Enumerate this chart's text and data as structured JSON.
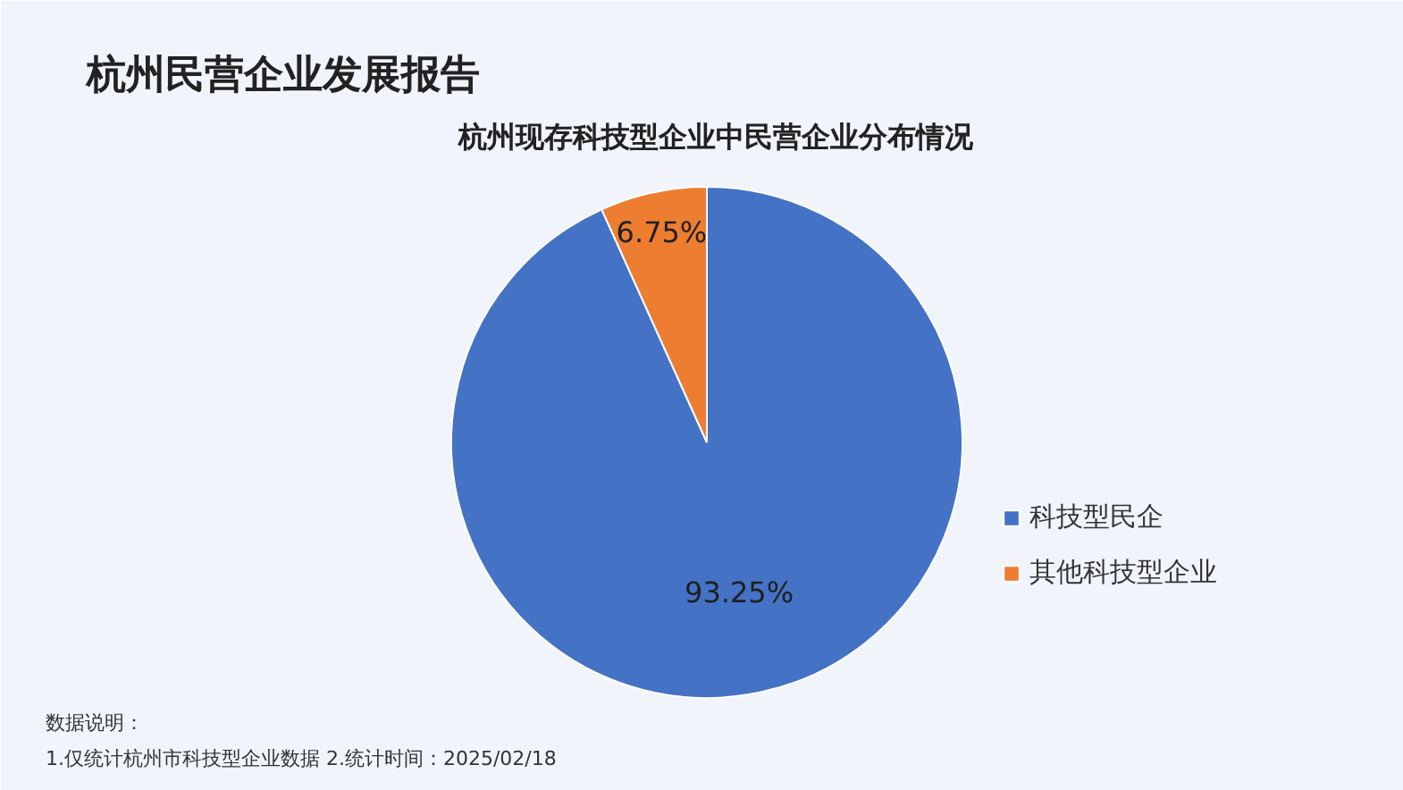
{
  "chart_data": {
    "type": "pie",
    "title": "杭州民营企业发展报告",
    "subtitle": "杭州现存科技型企业中民营企业分布情况",
    "categories": [
      "科技型民企",
      "其他科技型企业"
    ],
    "values": [
      93.25,
      6.75
    ],
    "colors": [
      "#4472c4",
      "#ed7d31"
    ],
    "value_labels": [
      "93.25%",
      "6.75%"
    ],
    "legend": "right",
    "annotations": [
      "数据说明：",
      "1.仅统计杭州市科技型企业数据 2.统计时间：2025/02/18"
    ]
  }
}
